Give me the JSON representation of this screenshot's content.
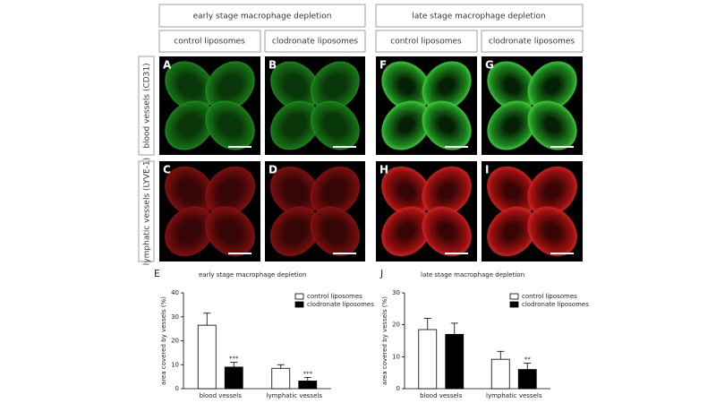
{
  "figure": {
    "groups": [
      {
        "title": "early stage macrophage depletion",
        "conditions": [
          "control liposomes",
          "clodronate liposomes"
        ]
      },
      {
        "title": "late stage macrophage depletion",
        "conditions": [
          "control liposomes",
          "clodronate liposomes"
        ]
      }
    ],
    "rows": [
      "blood vessels (CD31)",
      "lymphatic vessels (LYVE-1)"
    ],
    "panels": [
      [
        "A",
        "B",
        "F",
        "G"
      ],
      [
        "C",
        "D",
        "H",
        "I"
      ]
    ]
  },
  "chart_data": [
    {
      "type": "bar",
      "panel": "E",
      "title": "early stage macrophage depletion",
      "y_label": "area covered by vessels (%)",
      "categories": [
        "blood vessels",
        "lymphatic vessels"
      ],
      "series": [
        {
          "name": "control liposomes",
          "color": "#ffffff",
          "values": [
            26.5,
            8.5
          ],
          "errors": [
            5,
            1.5
          ],
          "significance": [
            null,
            null
          ]
        },
        {
          "name": "clodronate liposomes",
          "color": "#000000",
          "values": [
            9,
            3.2
          ],
          "errors": [
            2,
            1.5
          ],
          "significance": [
            "***",
            "***"
          ]
        }
      ],
      "ylim": [
        0,
        40
      ],
      "yticks": [
        0,
        10,
        20,
        30,
        40
      ],
      "legend": "upper right"
    },
    {
      "type": "bar",
      "panel": "J",
      "title": "late stage macrophage depletion",
      "y_label": "area covered by vessels (%)",
      "categories": [
        "blood vessels",
        "lymphatic vessels"
      ],
      "series": [
        {
          "name": "control liposomes",
          "color": "#ffffff",
          "values": [
            18.5,
            9.2
          ],
          "errors": [
            3.5,
            2.5
          ],
          "significance": [
            null,
            null
          ]
        },
        {
          "name": "clodronate liposomes",
          "color": "#000000",
          "values": [
            17,
            6
          ],
          "errors": [
            3.5,
            2
          ],
          "significance": [
            null,
            "**"
          ]
        }
      ],
      "ylim": [
        0,
        30
      ],
      "yticks": [
        0,
        10,
        20,
        30
      ],
      "legend": "upper right"
    }
  ]
}
